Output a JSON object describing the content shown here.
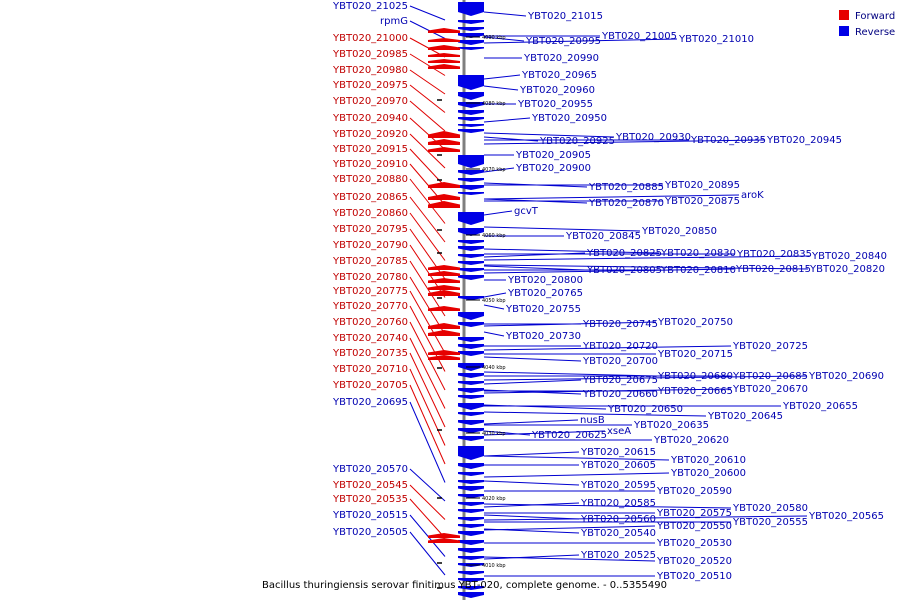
{
  "caption": "Bacillus thuringiensis serovar finitimus YBT-020, complete genome. - 0..5355490",
  "legend": {
    "forward": {
      "label": "Forward",
      "color": "#e60000"
    },
    "reverse": {
      "label": "Reverse",
      "color": "#0000e6"
    }
  },
  "colors": {
    "forward_text": "#c00000",
    "reverse_text": "#0000b0",
    "axis": "#7f7f7f"
  },
  "ticks": [
    "4090 kbp",
    "4080 kbp",
    "4070 kbp",
    "4060 kbp",
    "4050 kbp",
    "4040 kbp",
    "4030 kbp",
    "4020 kbp",
    "4010 kbp"
  ],
  "left_labels": [
    {
      "text": "YBT020_21025",
      "strand": "reverse"
    },
    {
      "text": "rpmG",
      "strand": "reverse"
    },
    {
      "text": "YBT020_21000",
      "strand": "forward"
    },
    {
      "text": "YBT020_20985",
      "strand": "forward"
    },
    {
      "text": "YBT020_20980",
      "strand": "forward"
    },
    {
      "text": "YBT020_20975",
      "strand": "forward"
    },
    {
      "text": "YBT020_20970",
      "strand": "forward"
    },
    {
      "text": "YBT020_20940",
      "strand": "forward"
    },
    {
      "text": "YBT020_20920",
      "strand": "forward"
    },
    {
      "text": "YBT020_20915",
      "strand": "forward"
    },
    {
      "text": "YBT020_20910",
      "strand": "forward"
    },
    {
      "text": "YBT020_20880",
      "strand": "forward"
    },
    {
      "text": "YBT020_20865",
      "strand": "forward"
    },
    {
      "text": "YBT020_20860",
      "strand": "forward"
    },
    {
      "text": "YBT020_20795",
      "strand": "forward"
    },
    {
      "text": "YBT020_20790",
      "strand": "forward"
    },
    {
      "text": "YBT020_20785",
      "strand": "forward"
    },
    {
      "text": "YBT020_20780",
      "strand": "forward"
    },
    {
      "text": "YBT020_20775",
      "strand": "forward"
    },
    {
      "text": "YBT020_20770",
      "strand": "forward"
    },
    {
      "text": "YBT020_20760",
      "strand": "forward"
    },
    {
      "text": "YBT020_20740",
      "strand": "forward"
    },
    {
      "text": "YBT020_20735",
      "strand": "forward"
    },
    {
      "text": "YBT020_20710",
      "strand": "forward"
    },
    {
      "text": "YBT020_20705",
      "strand": "forward"
    },
    {
      "text": "YBT020_20695",
      "strand": "reverse"
    },
    {
      "text": "YBT020_20570",
      "strand": "reverse"
    },
    {
      "text": "YBT020_20545",
      "strand": "forward"
    },
    {
      "text": "YBT020_20535",
      "strand": "forward"
    },
    {
      "text": "YBT020_20515",
      "strand": "reverse"
    },
    {
      "text": "YBT020_20505",
      "strand": "reverse"
    }
  ],
  "right_labels": [
    "YBT020_21015",
    "YBT020_21005",
    "YBT020_21010",
    "YBT020_20995",
    "YBT020_20990",
    "YBT020_20965",
    "YBT020_20960",
    "YBT020_20955",
    "YBT020_20950",
    "YBT020_20930",
    "YBT020_20935",
    "YBT020_20945",
    "YBT020_20925",
    "YBT020_20905",
    "YBT020_20900",
    "YBT020_20885",
    "YBT020_20895",
    "aroK",
    "YBT020_20870",
    "YBT020_20875",
    "gcvT",
    "YBT020_20850",
    "YBT020_20845",
    "YBT020_20825",
    "YBT020_20830",
    "YBT020_20835",
    "YBT020_20840",
    "YBT020_20805",
    "YBT020_20810",
    "YBT020_20815",
    "YBT020_20820",
    "YBT020_20800",
    "YBT020_20765",
    "YBT020_20755",
    "YBT020_20745",
    "YBT020_20750",
    "YBT020_20730",
    "YBT020_20720",
    "YBT020_20725",
    "YBT020_20700",
    "YBT020_20715",
    "YBT020_20675",
    "YBT020_20680",
    "YBT020_20685",
    "YBT020_20690",
    "YBT020_20660",
    "YBT020_20665",
    "YBT020_20670",
    "YBT020_20650",
    "YBT020_20655",
    "nusB",
    "YBT020_20645",
    "YBT020_20635",
    "xseA",
    "YBT020_20625",
    "YBT020_20620",
    "YBT020_20615",
    "YBT020_20610",
    "YBT020_20605",
    "YBT020_20600",
    "YBT020_20595",
    "YBT020_20590",
    "YBT020_20585",
    "YBT020_20580",
    "YBT020_20575",
    "YBT020_20565",
    "YBT020_20560",
    "YBT020_20555",
    "YBT020_20550",
    "YBT020_20540",
    "YBT020_20530",
    "YBT020_20525",
    "YBT020_20520",
    "YBT020_20510"
  ]
}
